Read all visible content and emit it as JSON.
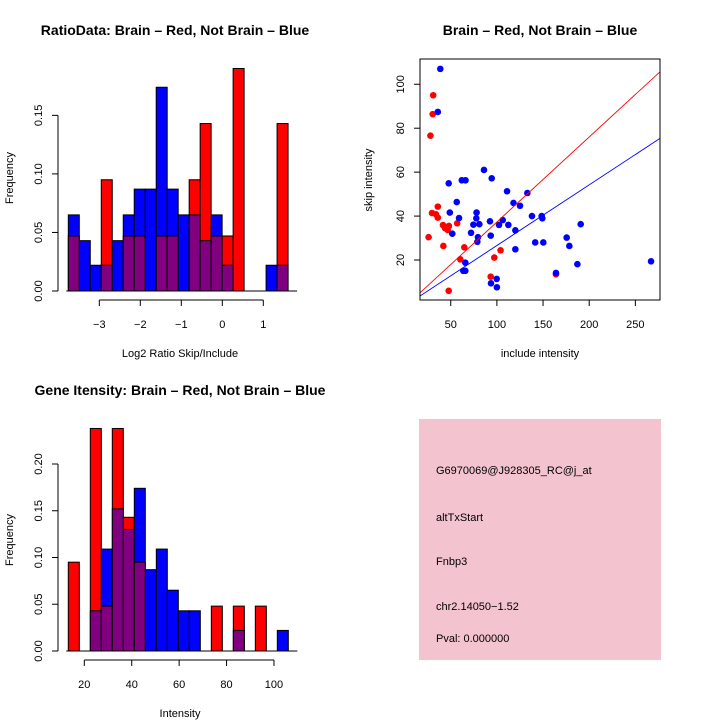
{
  "colors": {
    "brain": "#ff0000",
    "not_brain": "#0000ff",
    "overlap": "#800080",
    "info_bg": "#f3c4cf",
    "pval": "#a00000"
  },
  "chart_data": [
    {
      "type": "bar",
      "title": "RatioData: Brain – Red, Not Brain – Blue",
      "xlabel": "Log2 Ratio Skip/Include",
      "ylabel": "Frequency",
      "bin_start": -3.756,
      "bin_width": 0.268,
      "xticks": [
        -3,
        -2,
        -1,
        0,
        1
      ],
      "xtick_labels": [
        "−3",
        "−2",
        "−1",
        "0",
        "1"
      ],
      "yticks": [
        0,
        0.05,
        0.1,
        0.15
      ],
      "ytick_labels": [
        "0.00",
        "0.05",
        "0.10",
        "0.15"
      ],
      "series": [
        {
          "name": "Brain",
          "color": "red",
          "values": [
            0.047,
            0,
            0,
            0.095,
            0,
            0.047,
            0.047,
            0,
            0.047,
            0.047,
            0,
            0.095,
            0.143,
            0.047,
            0.047,
            0.19,
            0,
            0,
            0,
            0.143
          ]
        },
        {
          "name": "Not Brain",
          "color": "blue",
          "values": [
            0.065,
            0.043,
            0.022,
            0.022,
            0.043,
            0.065,
            0.087,
            0.087,
            0.174,
            0.087,
            0.065,
            0.065,
            0.043,
            0.065,
            0.022,
            0,
            0,
            0,
            0.022,
            0.022
          ]
        }
      ]
    },
    {
      "type": "scatter",
      "title": "Brain – Red, Not Brain – Blue",
      "xlabel": "include intensity",
      "ylabel": "skip intensity",
      "xlim": [
        16.7,
        276.7
      ],
      "ylim": [
        1.8,
        111.5
      ],
      "xticks": [
        50,
        100,
        150,
        200,
        250
      ],
      "xtick_labels": [
        "50",
        "100",
        "150",
        "200",
        "250"
      ],
      "yticks": [
        20,
        40,
        60,
        80,
        100
      ],
      "ytick_labels": [
        "20",
        "40",
        "60",
        "80",
        "100"
      ],
      "series": [
        {
          "name": "Brain",
          "color": "red",
          "fit": {
            "intercept": -1.4,
            "slope": 0.387
          },
          "points": [
            [
              31,
              95
            ],
            [
              30.5,
              86.4
            ],
            [
              28,
              76.6
            ],
            [
              29.7,
              41.4
            ],
            [
              26,
              30.4
            ],
            [
              36,
              44.3
            ],
            [
              34,
              40.8
            ],
            [
              36,
              39.3
            ],
            [
              41.6,
              35.9
            ],
            [
              43.8,
              34.5
            ],
            [
              46.7,
              33.7
            ],
            [
              48,
              35.5
            ],
            [
              42,
              26.4
            ],
            [
              57,
              36.7
            ],
            [
              64.7,
              25.8
            ],
            [
              60.4,
              20.3
            ],
            [
              47.8,
              6
            ],
            [
              93.3,
              12.4
            ],
            [
              97.2,
              21.1
            ],
            [
              104,
              24.4
            ],
            [
              164,
              13.5
            ]
          ]
        },
        {
          "name": "Not Brain",
          "color": "blue",
          "fit": {
            "intercept": -1,
            "slope": 0.276
          },
          "points": [
            [
              38.7,
              107
            ],
            [
              36,
              87.4
            ],
            [
              47.8,
              54.9
            ],
            [
              49,
              41.6
            ],
            [
              51.7,
              32
            ],
            [
              56.5,
              46.4
            ],
            [
              59,
              39.1
            ],
            [
              62,
              56.3
            ],
            [
              66,
              56.3
            ],
            [
              65.8,
              18.8
            ],
            [
              63.6,
              15.1
            ],
            [
              65.8,
              15.1
            ],
            [
              72,
              32.4
            ],
            [
              74.5,
              36.1
            ],
            [
              78,
              41.6
            ],
            [
              77.7,
              39
            ],
            [
              79.5,
              30.4
            ],
            [
              78.8,
              28.3
            ],
            [
              81,
              36.3
            ],
            [
              86,
              61
            ],
            [
              94.4,
              57.2
            ],
            [
              92.5,
              37.6
            ],
            [
              93.3,
              31.1
            ],
            [
              93.6,
              9.4
            ],
            [
              99.8,
              11.4
            ],
            [
              100,
              7.6
            ],
            [
              102.3,
              36
            ],
            [
              106.3,
              38.2
            ],
            [
              111,
              51.3
            ],
            [
              112.4,
              36
            ],
            [
              118,
              46
            ],
            [
              120,
              33.5
            ],
            [
              120,
              24.9
            ],
            [
              125,
              44.7
            ],
            [
              133,
              50.5
            ],
            [
              138,
              40
            ],
            [
              141.5,
              28
            ],
            [
              150.3,
              28
            ],
            [
              148.5,
              40
            ],
            [
              149.2,
              39
            ],
            [
              164,
              14.1
            ],
            [
              175.6,
              30.2
            ],
            [
              178.5,
              26.4
            ],
            [
              190.8,
              36.3
            ],
            [
              187.2,
              18.1
            ],
            [
              267,
              19.4
            ]
          ]
        }
      ]
    },
    {
      "type": "bar",
      "title": "Gene Itensity: Brain – Red, Not Brain – Blue",
      "xlabel": "Intensity",
      "ylabel": "Frequency",
      "bin_start": 13.25,
      "bin_width": 4.64,
      "xticks": [
        20,
        40,
        60,
        80,
        100
      ],
      "xtick_labels": [
        "20",
        "40",
        "60",
        "80",
        "100"
      ],
      "yticks": [
        0,
        0.05,
        0.1,
        0.15,
        0.2
      ],
      "ytick_labels": [
        "0.00",
        "0.05",
        "0.10",
        "0.15",
        "0.20"
      ],
      "series": [
        {
          "name": "Brain",
          "color": "red",
          "values": [
            0.095,
            0,
            0.238,
            0.048,
            0.238,
            0.143,
            0.095,
            0,
            0,
            0,
            0,
            0,
            0,
            0.048,
            0,
            0.048,
            0,
            0.048,
            0,
            0
          ]
        },
        {
          "name": "Not Brain",
          "color": "blue",
          "values": [
            0,
            0,
            0.043,
            0.109,
            0.152,
            0.13,
            0.174,
            0.087,
            0.109,
            0.065,
            0.043,
            0.043,
            0,
            0,
            0,
            0.022,
            0,
            0,
            0,
            0.022
          ]
        }
      ]
    }
  ],
  "info": {
    "probe_id": "G6970069@J928305_RC@j_at",
    "event_type": "altTxStart",
    "gene": "Fnbp3",
    "location": "chr2.14050−1.52",
    "pval": "Pval: 0.000000"
  }
}
